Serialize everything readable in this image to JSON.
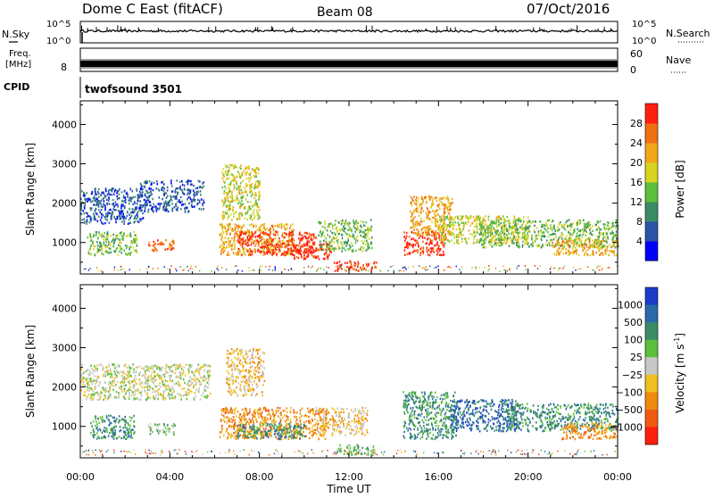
{
  "header": {
    "station": "Dome C East (fitACF)",
    "beam": "Beam 08",
    "date": "07/Oct/2016"
  },
  "panels": {
    "nsky": {
      "left_label": "N.Sky",
      "right_label": "N.Search",
      "left_top": "10^5",
      "left_bottom": "10^0",
      "right_top": "10^5",
      "right_bottom": "10^0"
    },
    "freq": {
      "left_label_top": "Freq.",
      "left_label_bottom": "[MHz]",
      "left_tick_8": "8",
      "right_label": "Nave",
      "right_top": "60",
      "right_bottom": "0"
    },
    "cpid": {
      "label": "CPID",
      "value": "twofsound 3501"
    }
  },
  "chart_data": [
    {
      "type": "heatmap",
      "name": "power-panel",
      "ylabel": "Slant Range [km]",
      "xlabel": "",
      "x_ticks": [
        "00:00",
        "04:00",
        "08:00",
        "12:00",
        "16:00",
        "20:00",
        "00:00"
      ],
      "y_ticks": [
        1000,
        2000,
        3000,
        4000
      ],
      "ylim": [
        200,
        4600
      ],
      "xlim_hours": [
        0,
        24
      ],
      "colorbar": {
        "label": "Power [dB]",
        "ticks": [
          "4",
          "8",
          "12",
          "16",
          "20",
          "24",
          "28"
        ],
        "colors": [
          "#0000ff",
          "#2b54a8",
          "#3a8c66",
          "#5cbf3a",
          "#d9d320",
          "#f0a818",
          "#f07010",
          "#ff2010"
        ]
      },
      "regions": [
        {
          "t0": 0.0,
          "t1": 2.8,
          "r0": 1500,
          "r1": 2400,
          "level": 1
        },
        {
          "t0": 0.3,
          "t1": 2.5,
          "r0": 700,
          "r1": 1300,
          "level": 3
        },
        {
          "t0": 2.6,
          "t1": 5.5,
          "r0": 1800,
          "r1": 2600,
          "level": 1
        },
        {
          "t0": 3.0,
          "t1": 4.2,
          "r0": 800,
          "r1": 1100,
          "level": 6
        },
        {
          "t0": 6.3,
          "t1": 8.0,
          "r0": 1600,
          "r1": 3000,
          "level": 4
        },
        {
          "t0": 6.2,
          "t1": 9.5,
          "r0": 700,
          "r1": 1500,
          "level": 5
        },
        {
          "t0": 7.0,
          "t1": 10.5,
          "r0": 700,
          "r1": 1300,
          "level": 7
        },
        {
          "t0": 9.5,
          "t1": 11.2,
          "r0": 600,
          "r1": 1000,
          "level": 7
        },
        {
          "t0": 10.6,
          "t1": 13.0,
          "r0": 800,
          "r1": 1600,
          "level": 3
        },
        {
          "t0": 11.3,
          "t1": 13.2,
          "r0": 300,
          "r1": 550,
          "level": 7
        },
        {
          "t0": 14.4,
          "t1": 16.3,
          "r0": 700,
          "r1": 1300,
          "level": 7
        },
        {
          "t0": 14.7,
          "t1": 16.6,
          "r0": 1200,
          "r1": 2200,
          "level": 5
        },
        {
          "t0": 16.0,
          "t1": 20.0,
          "r0": 1000,
          "r1": 1700,
          "level": 4
        },
        {
          "t0": 17.8,
          "t1": 24.0,
          "r0": 900,
          "r1": 1600,
          "level": 3
        },
        {
          "t0": 21.0,
          "t1": 24.0,
          "r0": 700,
          "r1": 1100,
          "level": 5
        }
      ]
    },
    {
      "type": "heatmap",
      "name": "velocity-panel",
      "ylabel": "Slant Range [km]",
      "xlabel": "Time UT",
      "x_ticks": [
        "00:00",
        "04:00",
        "08:00",
        "12:00",
        "16:00",
        "20:00",
        "00:00"
      ],
      "y_ticks": [
        1000,
        2000,
        3000,
        4000
      ],
      "ylim": [
        200,
        4600
      ],
      "xlim_hours": [
        0,
        24
      ],
      "colorbar": {
        "label": "Velocity [m s",
        "label_sup": "-1",
        "label_end": "]",
        "ticks": [
          "1000",
          "500",
          "100",
          "25",
          "−25",
          "−100",
          "−500",
          "−1000"
        ],
        "colors": [
          "#1a3cc8",
          "#2b6aa8",
          "#3a8c66",
          "#5cbf3a",
          "#c8c8c8",
          "#f0c020",
          "#f08a10",
          "#f05a10",
          "#ff2010"
        ]
      },
      "regions": [
        {
          "t0": 0.0,
          "t1": 5.8,
          "r0": 1700,
          "r1": 2600,
          "level": 4
        },
        {
          "t0": 0.4,
          "t1": 2.4,
          "r0": 700,
          "r1": 1300,
          "level": 2
        },
        {
          "t0": 3.0,
          "t1": 4.2,
          "r0": 800,
          "r1": 1100,
          "level": 3
        },
        {
          "t0": 6.5,
          "t1": 8.2,
          "r0": 1800,
          "r1": 3000,
          "level": 5
        },
        {
          "t0": 6.2,
          "t1": 11.0,
          "r0": 700,
          "r1": 1500,
          "level": 6
        },
        {
          "t0": 7.0,
          "t1": 10.0,
          "r0": 700,
          "r1": 1100,
          "level": 2
        },
        {
          "t0": 10.5,
          "t1": 12.8,
          "r0": 800,
          "r1": 1500,
          "level": 5
        },
        {
          "t0": 11.4,
          "t1": 13.2,
          "r0": 300,
          "r1": 550,
          "level": 3
        },
        {
          "t0": 14.4,
          "t1": 16.8,
          "r0": 700,
          "r1": 1900,
          "level": 2
        },
        {
          "t0": 16.5,
          "t1": 19.5,
          "r0": 900,
          "r1": 1700,
          "level": 1
        },
        {
          "t0": 19.0,
          "t1": 24.0,
          "r0": 900,
          "r1": 1600,
          "level": 2
        },
        {
          "t0": 21.5,
          "t1": 24.0,
          "r0": 700,
          "r1": 1100,
          "level": 6
        }
      ]
    }
  ]
}
